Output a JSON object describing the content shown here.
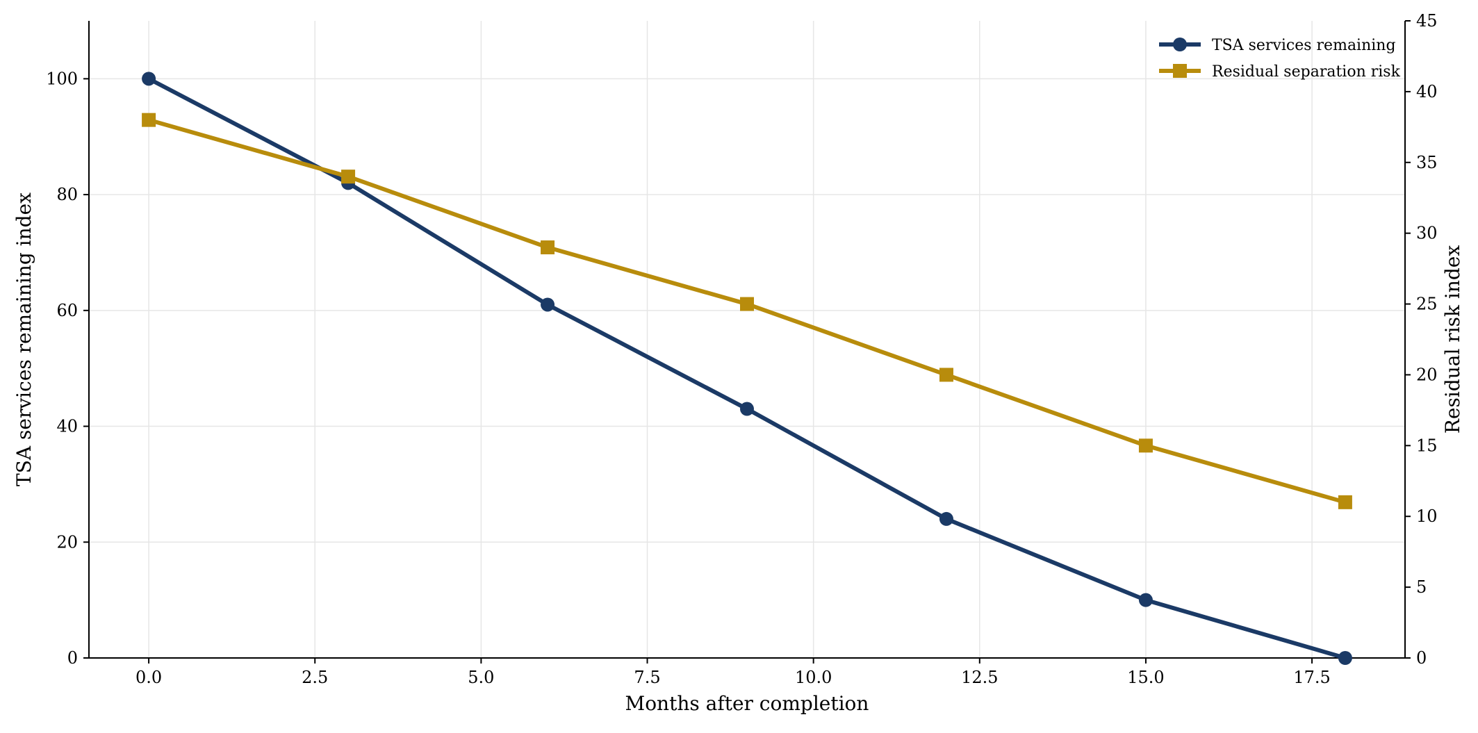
{
  "chart_data": {
    "type": "line",
    "title": "",
    "xlabel": "Months after completion",
    "ylabel_left": "TSA services remaining index",
    "ylabel_right": "Residual risk index",
    "x": [
      0,
      3,
      6,
      9,
      12,
      15,
      18
    ],
    "xlim": [
      -0.9,
      18.9
    ],
    "ylim_left": [
      0,
      110
    ],
    "ylim_right": [
      0,
      45
    ],
    "xticks": [
      0,
      2.5,
      5,
      7.5,
      10,
      12.5,
      15,
      17.5
    ],
    "xtick_labels": [
      "0.0",
      "2.5",
      "5.0",
      "7.5",
      "10.0",
      "12.5",
      "15.0",
      "17.5"
    ],
    "yticks_left": [
      0,
      20,
      40,
      60,
      80,
      100
    ],
    "ytick_labels_left": [
      "0",
      "20",
      "40",
      "60",
      "80",
      "100"
    ],
    "yticks_right": [
      0,
      5,
      10,
      15,
      20,
      25,
      30,
      35,
      40,
      45
    ],
    "ytick_labels_right": [
      "0",
      "5",
      "10",
      "15",
      "20",
      "25",
      "30",
      "35",
      "40",
      "45"
    ],
    "grid": true,
    "legend_position": "top-right",
    "series": [
      {
        "name": "TSA services remaining",
        "axis": "left",
        "marker": "circle",
        "color": "#1b3a66",
        "values": [
          100,
          82,
          61,
          43,
          24,
          10,
          0
        ]
      },
      {
        "name": "Residual separation risk",
        "axis": "right",
        "marker": "square",
        "color": "#b88c0c",
        "values": [
          38,
          34,
          29,
          25,
          20,
          15,
          11
        ]
      }
    ]
  }
}
